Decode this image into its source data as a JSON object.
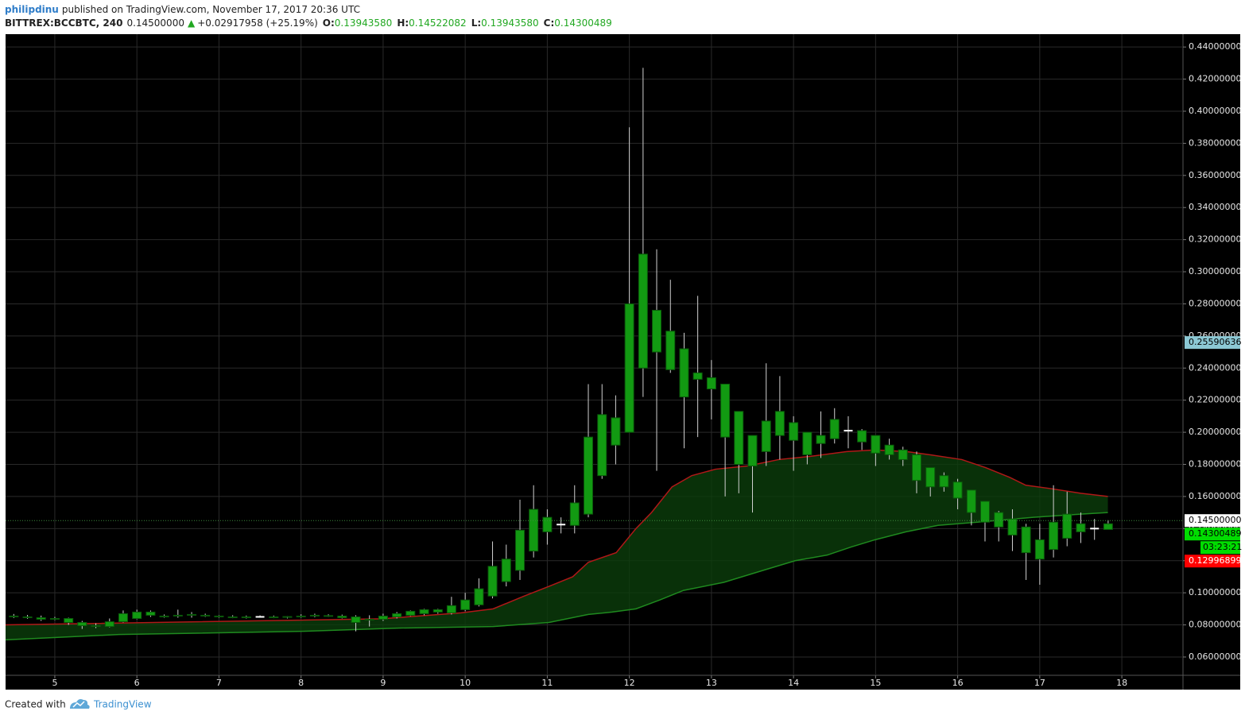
{
  "header": {
    "author": "philipdinu",
    "published": "published on TradingView.com, November 17, 2017 20:36 UTC",
    "symbol": "BITTREX:BCCBTC, 240",
    "last": "0.14500000",
    "change": "+0.02917958 (+25.19%)",
    "ohlc": [
      {
        "key": "O:",
        "value": "0.13943580"
      },
      {
        "key": "H:",
        "value": "0.14522082"
      },
      {
        "key": "L:",
        "value": "0.13943580"
      },
      {
        "key": "C:",
        "value": "0.14300489"
      }
    ]
  },
  "chart_data": {
    "type": "candlestick",
    "x": [
      4.5,
      4.667,
      4.833,
      5,
      5.167,
      5.333,
      5.5,
      5.667,
      5.833,
      6,
      6.167,
      6.333,
      6.5,
      6.667,
      6.833,
      7,
      7.167,
      7.333,
      7.5,
      7.667,
      7.833,
      8,
      8.167,
      8.333,
      8.5,
      8.667,
      8.833,
      9,
      9.167,
      9.333,
      9.5,
      9.667,
      9.833,
      10,
      10.167,
      10.333,
      10.5,
      10.667,
      10.833,
      11,
      11.167,
      11.333,
      11.5,
      11.667,
      11.833,
      12,
      12.167,
      12.333,
      12.5,
      12.667,
      12.833,
      13,
      13.167,
      13.333,
      13.5,
      13.667,
      13.833,
      14,
      14.167,
      14.333,
      14.5,
      14.667,
      14.833,
      15,
      15.167,
      15.333,
      15.5,
      15.667,
      15.833,
      16,
      16.167,
      16.333,
      16.5,
      16.667,
      16.833,
      17,
      17.167,
      17.333,
      17.5,
      17.667,
      17.833
    ],
    "open": [
      0.0855,
      0.085,
      0.0845,
      0.0835,
      0.084,
      0.0815,
      0.0795,
      0.079,
      0.082,
      0.084,
      0.086,
      0.085,
      0.0855,
      0.086,
      0.086,
      0.0855,
      0.085,
      0.0848,
      0.085,
      0.085,
      0.0848,
      0.0852,
      0.0855,
      0.0858,
      0.0855,
      0.085,
      0.083,
      0.0835,
      0.085,
      0.086,
      0.087,
      0.088,
      0.0875,
      0.0895,
      0.0925,
      0.098,
      0.107,
      0.114,
      0.126,
      0.147,
      0.1425,
      0.142,
      0.149,
      0.173,
      0.192,
      0.2,
      0.24,
      0.276,
      0.263,
      0.252,
      0.237,
      0.234,
      0.23,
      0.213,
      0.179,
      0.188,
      0.213,
      0.206,
      0.2,
      0.193,
      0.196,
      0.201,
      0.201,
      0.198,
      0.192,
      0.189,
      0.186,
      0.178,
      0.173,
      0.169,
      0.164,
      0.157,
      0.15,
      0.146,
      0.141,
      0.133,
      0.127,
      0.134,
      0.143,
      0.14,
      0.1394358
    ],
    "high": [
      0.0868,
      0.0862,
      0.0858,
      0.085,
      0.0845,
      0.0825,
      0.081,
      0.084,
      0.089,
      0.0895,
      0.089,
      0.0865,
      0.0895,
      0.088,
      0.087,
      0.086,
      0.086,
      0.0858,
      0.086,
      0.0858,
      0.0855,
      0.0866,
      0.087,
      0.0866,
      0.0864,
      0.086,
      0.086,
      0.087,
      0.088,
      0.089,
      0.09,
      0.09,
      0.0975,
      0.1,
      0.109,
      0.132,
      0.13,
      0.158,
      0.167,
      0.152,
      0.147,
      0.167,
      0.23,
      0.23,
      0.223,
      0.39,
      0.427,
      0.314,
      0.295,
      0.262,
      0.285,
      0.245,
      0.23,
      0.213,
      0.198,
      0.243,
      0.235,
      0.21,
      0.2,
      0.213,
      0.215,
      0.21,
      0.202,
      0.198,
      0.196,
      0.191,
      0.188,
      0.178,
      0.175,
      0.171,
      0.164,
      0.157,
      0.151,
      0.152,
      0.143,
      0.143,
      0.167,
      0.163,
      0.15,
      0.146,
      0.14522082
    ],
    "low": [
      0.0843,
      0.0838,
      0.0825,
      0.083,
      0.08,
      0.0775,
      0.078,
      0.0785,
      0.0815,
      0.0835,
      0.085,
      0.0845,
      0.0845,
      0.0845,
      0.085,
      0.0845,
      0.0842,
      0.084,
      0.0845,
      0.0842,
      0.084,
      0.0845,
      0.0848,
      0.085,
      0.084,
      0.076,
      0.079,
      0.0825,
      0.084,
      0.0855,
      0.086,
      0.087,
      0.0865,
      0.0885,
      0.0915,
      0.0965,
      0.104,
      0.108,
      0.122,
      0.13,
      0.137,
      0.137,
      0.147,
      0.171,
      0.18,
      0.2,
      0.222,
      0.176,
      0.237,
      0.19,
      0.197,
      0.208,
      0.16,
      0.162,
      0.15,
      0.179,
      0.183,
      0.176,
      0.18,
      0.184,
      0.193,
      0.19,
      0.189,
      0.179,
      0.183,
      0.179,
      0.162,
      0.16,
      0.163,
      0.152,
      0.142,
      0.132,
      0.132,
      0.126,
      0.108,
      0.105,
      0.122,
      0.129,
      0.131,
      0.133,
      0.1394358
    ],
    "close": [
      0.085,
      0.0845,
      0.0835,
      0.084,
      0.0815,
      0.0795,
      0.079,
      0.082,
      0.087,
      0.088,
      0.088,
      0.0855,
      0.086,
      0.0865,
      0.0855,
      0.085,
      0.0848,
      0.085,
      0.085,
      0.0848,
      0.0852,
      0.0855,
      0.086,
      0.0855,
      0.0845,
      0.0815,
      0.0835,
      0.0855,
      0.087,
      0.0885,
      0.0895,
      0.0895,
      0.092,
      0.0955,
      0.1025,
      0.1165,
      0.121,
      0.139,
      0.152,
      0.138,
      0.1425,
      0.156,
      0.197,
      0.211,
      0.209,
      0.28,
      0.311,
      0.25,
      0.239,
      0.222,
      0.233,
      0.227,
      0.197,
      0.18,
      0.198,
      0.207,
      0.198,
      0.195,
      0.186,
      0.198,
      0.208,
      0.201,
      0.194,
      0.187,
      0.186,
      0.183,
      0.17,
      0.166,
      0.166,
      0.159,
      0.15,
      0.144,
      0.141,
      0.136,
      0.125,
      0.121,
      0.144,
      0.149,
      0.138,
      0.14,
      0.14300489
    ],
    "xlim": [
      4.4,
      18.745
    ],
    "ylim": [
      0.0486,
      0.448
    ],
    "xticks": [
      5,
      6,
      7,
      8,
      9,
      10,
      11,
      12,
      13,
      14,
      15,
      16,
      17,
      18
    ],
    "yticks": [
      {
        "value": 0.06,
        "label": "0.06000000"
      },
      {
        "value": 0.08,
        "label": "0.08000000"
      },
      {
        "value": 0.1,
        "label": "0.10000000"
      },
      {
        "value": 0.12,
        "label": "0.12000000"
      },
      {
        "value": 0.14,
        "label": "0.14000000"
      },
      {
        "value": 0.16,
        "label": "0.16000000"
      },
      {
        "value": 0.18,
        "label": "0.18000000"
      },
      {
        "value": 0.2,
        "label": "0.20000000"
      },
      {
        "value": 0.22,
        "label": "0.22000000"
      },
      {
        "value": 0.24,
        "label": "0.24000000"
      },
      {
        "value": 0.26,
        "label": "0.26000000"
      },
      {
        "value": 0.28,
        "label": "0.28000000"
      },
      {
        "value": 0.3,
        "label": "0.30000000"
      },
      {
        "value": 0.32,
        "label": "0.32000000"
      },
      {
        "value": 0.34,
        "label": "0.34000000"
      },
      {
        "value": 0.36,
        "label": "0.36000000"
      },
      {
        "value": 0.38,
        "label": "0.38000000"
      },
      {
        "value": 0.4,
        "label": "0.40000000"
      },
      {
        "value": 0.42,
        "label": "0.42000000"
      },
      {
        "value": 0.44,
        "label": "0.44000000"
      }
    ],
    "grid": true,
    "candle_color": "#129a12",
    "candle_border": "#0b5a0b",
    "wick_color": "#d0d0d0",
    "doji_color": "#ffffff",
    "band_fill": "#0b3d0b",
    "ma_lines": [
      {
        "color": "#b01818",
        "x": [
          4.4,
          8.98,
          9.95,
          10.34,
          10.72,
          11.02,
          11.31,
          11.5,
          11.84,
          12.08,
          12.27,
          12.52,
          12.76,
          13.05,
          13.44,
          13.82,
          14.21,
          14.65,
          14.99,
          15.37,
          15.66,
          16.05,
          16.34,
          16.63,
          16.83,
          17.12,
          17.5,
          17.83
        ],
        "values": [
          0.08,
          0.0838,
          0.0875,
          0.09,
          0.098,
          0.104,
          0.11,
          0.119,
          0.125,
          0.14,
          0.15,
          0.166,
          0.173,
          0.177,
          0.179,
          0.183,
          0.185,
          0.188,
          0.189,
          0.188,
          0.186,
          0.183,
          0.178,
          0.172,
          0.167,
          0.165,
          0.162,
          0.16
        ]
      },
      {
        "color": "#1f8a1f",
        "x": [
          4.4,
          5.78,
          8.01,
          9.17,
          10.34,
          11.02,
          11.5,
          11.79,
          12.08,
          12.37,
          12.66,
          13.15,
          13.63,
          14.02,
          14.41,
          14.7,
          14.99,
          15.37,
          15.76,
          16.24,
          16.92,
          17.5,
          17.83
        ],
        "values": [
          0.0707,
          0.074,
          0.076,
          0.078,
          0.079,
          0.0815,
          0.0865,
          0.088,
          0.09,
          0.0955,
          0.1015,
          0.1065,
          0.114,
          0.12,
          0.1235,
          0.1285,
          0.133,
          0.138,
          0.142,
          0.144,
          0.147,
          0.149,
          0.15
        ]
      }
    ],
    "price_labels": [
      {
        "value": 0.25590636,
        "label": "0.25590636",
        "color": "#8cc8d4",
        "text_color": "#000000"
      },
      {
        "value": 0.145,
        "label": "0.14500000",
        "color": "#ffffff",
        "text_color": "#000000",
        "line": true
      },
      {
        "value": 0.14300489,
        "label": "0.14300489",
        "color": "#00dd00",
        "text_color": "#000000",
        "countdown": "03:23:21"
      },
      {
        "value": 0.12996899,
        "label": "0.12996899",
        "color": "#ff0000",
        "text_color": "#ffffff"
      }
    ]
  },
  "footer": {
    "created_with": "Created with",
    "brand": "TradingView"
  }
}
